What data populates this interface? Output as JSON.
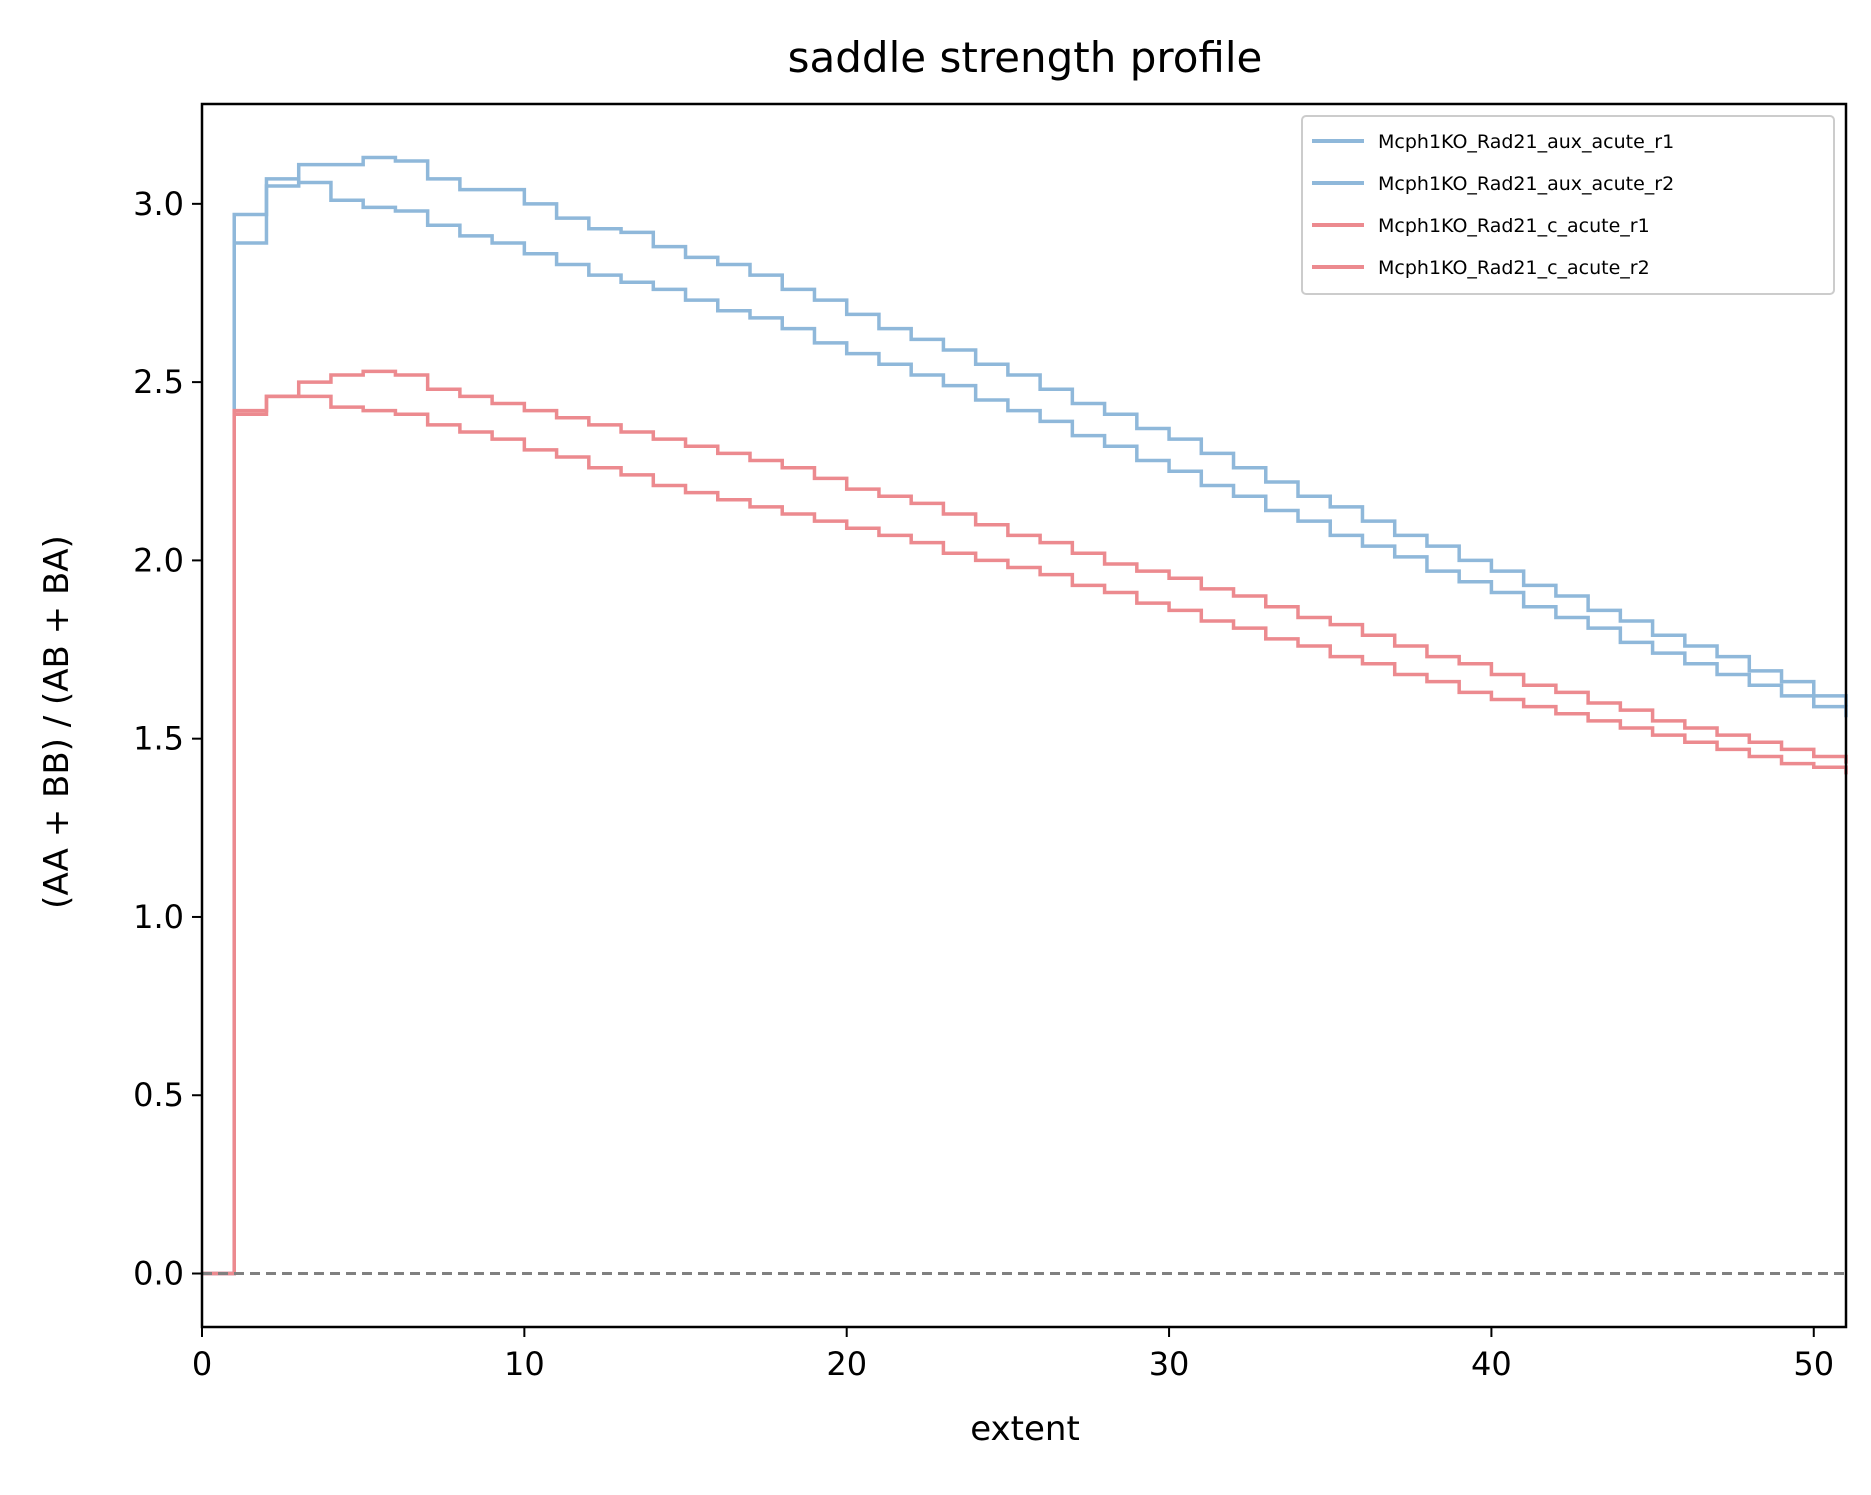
{
  "chart_data": {
    "type": "line",
    "title": "saddle strength profile",
    "xlabel": "extent",
    "ylabel": "(AA + BB) / (AB + BA)",
    "xlim": [
      0,
      51
    ],
    "ylim": [
      -0.15,
      3.28
    ],
    "xticks": [
      "0",
      "10",
      "20",
      "30",
      "40",
      "50"
    ],
    "yticks": [
      "0.0",
      "0.5",
      "1.0",
      "1.5",
      "2.0",
      "2.5",
      "3.0"
    ],
    "reference_line": {
      "y": 0,
      "style": "dashed",
      "color": "#808080"
    },
    "legend_position": "top-right",
    "drawstyle": "steps",
    "series": [
      {
        "name": "Mcph1KO_Rad21_aux_acute_r1",
        "color": "#8fb8da",
        "x": [
          0,
          1,
          2,
          3,
          4,
          5,
          6,
          7,
          8,
          9,
          10,
          11,
          12,
          13,
          14,
          15,
          16,
          17,
          18,
          19,
          20,
          21,
          22,
          23,
          24,
          25,
          26,
          27,
          28,
          29,
          30,
          31,
          32,
          33,
          34,
          35,
          36,
          37,
          38,
          39,
          40,
          41,
          42,
          43,
          44,
          45,
          46,
          47,
          48,
          49,
          50,
          51
        ],
        "y": [
          0,
          2.89,
          3.05,
          3.11,
          3.11,
          3.13,
          3.12,
          3.07,
          3.04,
          3.04,
          3.0,
          2.96,
          2.93,
          2.92,
          2.88,
          2.85,
          2.83,
          2.8,
          2.76,
          2.73,
          2.69,
          2.65,
          2.62,
          2.59,
          2.55,
          2.52,
          2.48,
          2.44,
          2.41,
          2.37,
          2.34,
          2.3,
          2.26,
          2.22,
          2.18,
          2.15,
          2.11,
          2.07,
          2.04,
          2.0,
          1.97,
          1.93,
          1.9,
          1.86,
          1.83,
          1.79,
          1.76,
          1.73,
          1.69,
          1.66,
          1.62,
          1.59
        ]
      },
      {
        "name": "Mcph1KO_Rad21_aux_acute_r2",
        "color": "#8fb8da",
        "x": [
          0,
          1,
          2,
          3,
          4,
          5,
          6,
          7,
          8,
          9,
          10,
          11,
          12,
          13,
          14,
          15,
          16,
          17,
          18,
          19,
          20,
          21,
          22,
          23,
          24,
          25,
          26,
          27,
          28,
          29,
          30,
          31,
          32,
          33,
          34,
          35,
          36,
          37,
          38,
          39,
          40,
          41,
          42,
          43,
          44,
          45,
          46,
          47,
          48,
          49,
          50,
          51
        ],
        "y": [
          0,
          2.97,
          3.07,
          3.06,
          3.01,
          2.99,
          2.98,
          2.94,
          2.91,
          2.89,
          2.86,
          2.83,
          2.8,
          2.78,
          2.76,
          2.73,
          2.7,
          2.68,
          2.65,
          2.61,
          2.58,
          2.55,
          2.52,
          2.49,
          2.45,
          2.42,
          2.39,
          2.35,
          2.32,
          2.28,
          2.25,
          2.21,
          2.18,
          2.14,
          2.11,
          2.07,
          2.04,
          2.01,
          1.97,
          1.94,
          1.91,
          1.87,
          1.84,
          1.81,
          1.77,
          1.74,
          1.71,
          1.68,
          1.65,
          1.62,
          1.59,
          1.56
        ]
      },
      {
        "name": "Mcph1KO_Rad21_c_acute_r1",
        "color": "#ec8a8f",
        "x": [
          0,
          1,
          2,
          3,
          4,
          5,
          6,
          7,
          8,
          9,
          10,
          11,
          12,
          13,
          14,
          15,
          16,
          17,
          18,
          19,
          20,
          21,
          22,
          23,
          24,
          25,
          26,
          27,
          28,
          29,
          30,
          31,
          32,
          33,
          34,
          35,
          36,
          37,
          38,
          39,
          40,
          41,
          42,
          43,
          44,
          45,
          46,
          47,
          48,
          49,
          50,
          51
        ],
        "y": [
          0,
          2.42,
          2.46,
          2.5,
          2.52,
          2.53,
          2.52,
          2.48,
          2.46,
          2.44,
          2.42,
          2.4,
          2.38,
          2.36,
          2.34,
          2.32,
          2.3,
          2.28,
          2.26,
          2.23,
          2.2,
          2.18,
          2.16,
          2.13,
          2.1,
          2.07,
          2.05,
          2.02,
          1.99,
          1.97,
          1.95,
          1.92,
          1.9,
          1.87,
          1.84,
          1.82,
          1.79,
          1.76,
          1.73,
          1.71,
          1.68,
          1.65,
          1.63,
          1.6,
          1.58,
          1.55,
          1.53,
          1.51,
          1.49,
          1.47,
          1.45,
          1.43
        ]
      },
      {
        "name": "Mcph1KO_Rad21_c_acute_r2",
        "color": "#ec8a8f",
        "x": [
          0,
          1,
          2,
          3,
          4,
          5,
          6,
          7,
          8,
          9,
          10,
          11,
          12,
          13,
          14,
          15,
          16,
          17,
          18,
          19,
          20,
          21,
          22,
          23,
          24,
          25,
          26,
          27,
          28,
          29,
          30,
          31,
          32,
          33,
          34,
          35,
          36,
          37,
          38,
          39,
          40,
          41,
          42,
          43,
          44,
          45,
          46,
          47,
          48,
          49,
          50,
          51
        ],
        "y": [
          0,
          2.41,
          2.46,
          2.46,
          2.43,
          2.42,
          2.41,
          2.38,
          2.36,
          2.34,
          2.31,
          2.29,
          2.26,
          2.24,
          2.21,
          2.19,
          2.17,
          2.15,
          2.13,
          2.11,
          2.09,
          2.07,
          2.05,
          2.02,
          2.0,
          1.98,
          1.96,
          1.93,
          1.91,
          1.88,
          1.86,
          1.83,
          1.81,
          1.78,
          1.76,
          1.73,
          1.71,
          1.68,
          1.66,
          1.63,
          1.61,
          1.59,
          1.57,
          1.55,
          1.53,
          1.51,
          1.49,
          1.47,
          1.45,
          1.43,
          1.42,
          1.4
        ]
      }
    ]
  }
}
